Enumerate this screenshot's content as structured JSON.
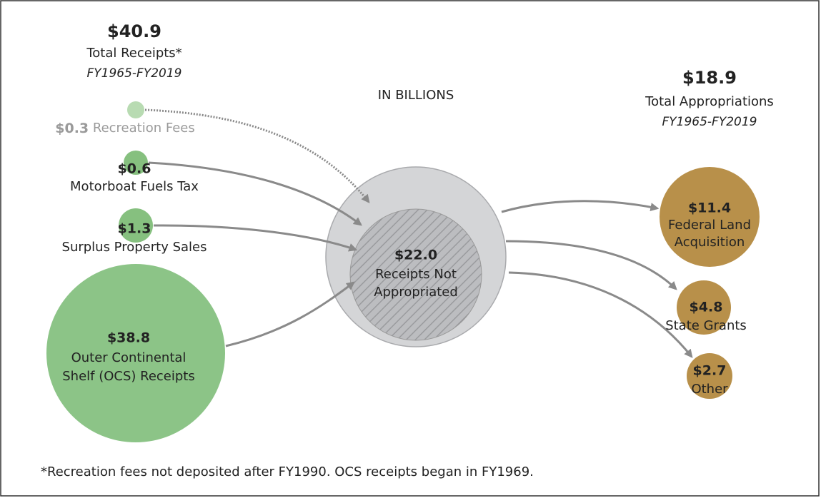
{
  "header_left": {
    "amount": "$40.9",
    "label": "Total Receipts*",
    "period": "FY1965-FY2019"
  },
  "unit_note": "IN BILLIONS",
  "header_right": {
    "amount": "$18.9",
    "label": "Total Appropriations",
    "period": "FY1965-FY2019"
  },
  "sources": [
    {
      "amount": "$0.3",
      "lines": [
        "Recreation Fees"
      ]
    },
    {
      "amount": "$0.6",
      "lines": [
        "Motorboat Fuels Tax"
      ]
    },
    {
      "amount": "$1.3",
      "lines": [
        "Surplus Property Sales"
      ]
    },
    {
      "amount": "$38.8",
      "lines": [
        "Outer Continental",
        "Shelf (OCS) Receipts"
      ]
    }
  ],
  "center": {
    "amount": "$22.0",
    "lines": [
      "Receipts Not",
      "Appropriated"
    ]
  },
  "uses": [
    {
      "amount": "$11.4",
      "lines": [
        "Federal Land",
        "Acquisition"
      ]
    },
    {
      "amount": "$4.8",
      "lines": [
        "State Grants"
      ]
    },
    {
      "amount": "$2.7",
      "lines": [
        "Other"
      ]
    }
  ],
  "footnote": "*Recreation fees not deposited after FY1990. OCS receipts began in FY1969."
}
